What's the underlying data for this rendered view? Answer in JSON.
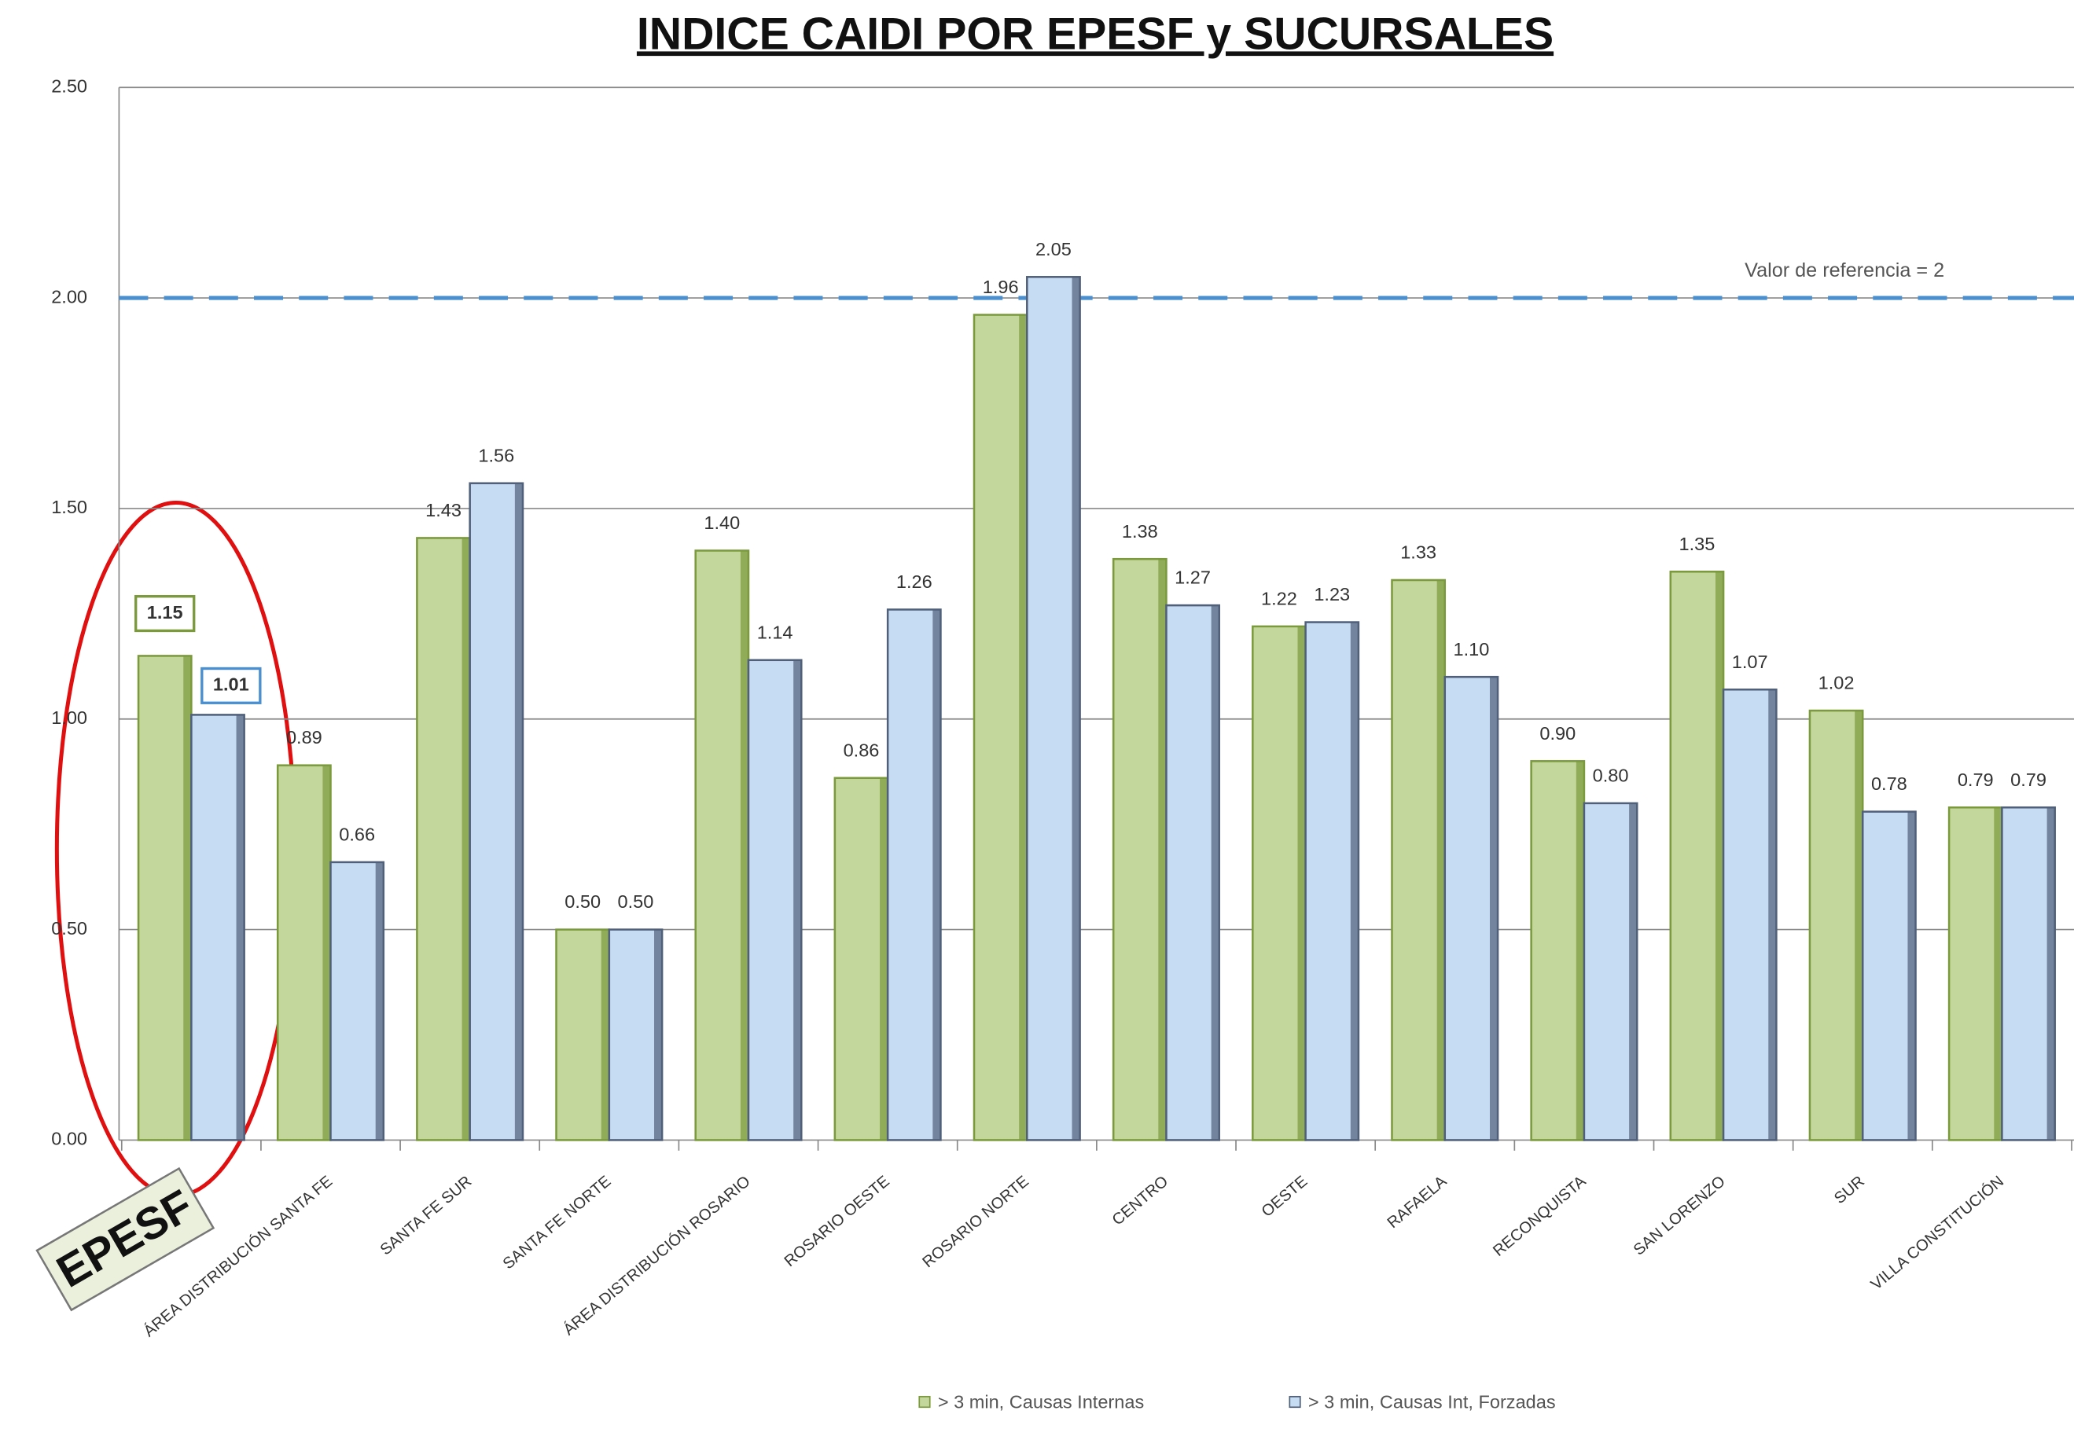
{
  "chart_data": {
    "type": "bar",
    "title": "INDICE CAIDI POR EPESF y SUCURSALES",
    "categories": [
      "EPESF",
      "ÁREA DISTRIBUCIÓN SANTA FE",
      "SANTA FE SUR",
      "SANTA FE NORTE",
      "ÁREA DISTRIBUCIÓN ROSARIO",
      "ROSARIO OESTE",
      "ROSARIO NORTE",
      "CENTRO",
      "OESTE",
      "RAFAELA",
      "RECONQUISTA",
      "SAN LORENZO",
      "SUR",
      "VILLA CONSTITUCIÓN"
    ],
    "series": [
      {
        "name": "> 3 min, Causas Internas",
        "color": "#c3d69b",
        "values": [
          1.15,
          0.89,
          1.43,
          0.5,
          1.4,
          0.86,
          1.96,
          1.38,
          1.22,
          1.33,
          0.9,
          1.35,
          1.02,
          0.79
        ],
        "value_labels": [
          "1.15",
          "0.89",
          "1.43",
          "0.50",
          "1.40",
          "0.86",
          "1.96",
          "1.38",
          "1.22",
          "1.33",
          "0.90",
          "1.35",
          "1.02",
          "0.79"
        ]
      },
      {
        "name": "> 3 min, Causas Int, Forzadas",
        "color": "#c6dcf2",
        "values": [
          1.01,
          0.66,
          1.56,
          0.5,
          1.14,
          1.26,
          2.05,
          1.27,
          1.23,
          1.1,
          0.8,
          1.07,
          0.78,
          0.79
        ],
        "value_labels": [
          "1.01",
          "0.66",
          "1.56",
          "0.50",
          "1.14",
          "1.26",
          "2.05",
          "1.27",
          "1.23",
          "1.10",
          "0.80",
          "1.07",
          "0.78",
          "0.79"
        ]
      }
    ],
    "ylim": [
      0,
      2.5
    ],
    "yticks": [
      {
        "value": 0,
        "label": "0.00"
      },
      {
        "value": 0.5,
        "label": "0.50"
      },
      {
        "value": 1,
        "label": "1.00"
      },
      {
        "value": 1.5,
        "label": "1.50"
      },
      {
        "value": 2,
        "label": "2.00"
      },
      {
        "value": 2.5,
        "label": "2.50"
      }
    ],
    "grid": true,
    "reference_line": {
      "value": 2,
      "label": "Valor de referencia = 2",
      "color": "#4a90d0"
    }
  }
}
